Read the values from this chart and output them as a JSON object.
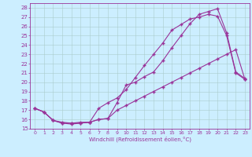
{
  "xlabel": "Windchill (Refroidissement éolien,°C)",
  "bg_color": "#cceeff",
  "line_color": "#993399",
  "grid_color": "#aacccc",
  "xlim": [
    -0.5,
    23.5
  ],
  "ylim": [
    15,
    28.5
  ],
  "yticks": [
    15,
    16,
    17,
    18,
    19,
    20,
    21,
    22,
    23,
    24,
    25,
    26,
    27,
    28
  ],
  "xticks": [
    0,
    1,
    2,
    3,
    4,
    5,
    6,
    7,
    8,
    9,
    10,
    11,
    12,
    13,
    14,
    15,
    16,
    17,
    18,
    19,
    20,
    21,
    22,
    23
  ],
  "line1_x": [
    0,
    1,
    2,
    3,
    4,
    5,
    6,
    7,
    8,
    9,
    10,
    11,
    12,
    13,
    14,
    15,
    16,
    17,
    18,
    19,
    20,
    21,
    22,
    23
  ],
  "line1_y": [
    17.2,
    16.8,
    15.9,
    15.6,
    15.6,
    15.7,
    15.7,
    16.0,
    16.1,
    17.8,
    19.7,
    20.0,
    20.6,
    21.1,
    22.3,
    23.7,
    25.0,
    26.3,
    27.3,
    27.6,
    27.9,
    25.3,
    21.1,
    20.4
  ],
  "line2_x": [
    0,
    1,
    2,
    3,
    4,
    5,
    6,
    7,
    8,
    9,
    10,
    11,
    12,
    13,
    14,
    15,
    16,
    17,
    18,
    19,
    20,
    21,
    22,
    23
  ],
  "line2_y": [
    17.2,
    16.8,
    15.9,
    15.7,
    15.6,
    15.6,
    15.7,
    17.2,
    17.8,
    18.3,
    19.2,
    20.5,
    21.8,
    23.0,
    24.2,
    25.6,
    26.2,
    26.8,
    27.0,
    27.3,
    27.1,
    25.0,
    21.0,
    20.3
  ],
  "line3_x": [
    0,
    1,
    2,
    3,
    4,
    5,
    6,
    7,
    8,
    9,
    10,
    11,
    12,
    13,
    14,
    15,
    16,
    17,
    18,
    19,
    20,
    21,
    22,
    23
  ],
  "line3_y": [
    17.2,
    16.8,
    15.9,
    15.6,
    15.5,
    15.6,
    15.7,
    16.0,
    16.1,
    17.0,
    17.5,
    18.0,
    18.5,
    19.0,
    19.5,
    20.0,
    20.5,
    21.0,
    21.5,
    22.0,
    22.5,
    23.0,
    23.5,
    20.3
  ],
  "marker": "+",
  "markersize": 3.5,
  "linewidth": 0.8
}
